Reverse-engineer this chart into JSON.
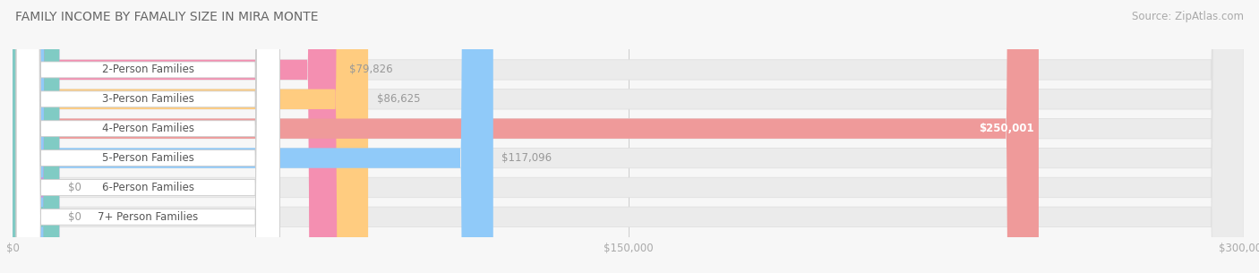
{
  "title": "FAMILY INCOME BY FAMALIY SIZE IN MIRA MONTE",
  "source": "Source: ZipAtlas.com",
  "categories": [
    "2-Person Families",
    "3-Person Families",
    "4-Person Families",
    "5-Person Families",
    "6-Person Families",
    "7+ Person Families"
  ],
  "values": [
    79826,
    86625,
    250001,
    117096,
    0,
    0
  ],
  "bar_colors": [
    "#F48FB1",
    "#FFCC80",
    "#EF9A9A",
    "#90CAF9",
    "#CE93D8",
    "#80CBC4"
  ],
  "value_labels": [
    "$79,826",
    "$86,625",
    "$250,001",
    "$117,096",
    "$0",
    "$0"
  ],
  "xlim": [
    0,
    300000
  ],
  "xtick_labels": [
    "$0",
    "$150,000",
    "$300,000"
  ],
  "background_color": "#f7f7f7",
  "track_color": "#ebebeb",
  "track_edge_color": "#e0e0e0",
  "pill_color": "#ffffff",
  "pill_edge_color": "#cccccc",
  "title_fontsize": 10,
  "source_fontsize": 8.5,
  "label_fontsize": 8.5,
  "value_fontsize": 8.5,
  "bar_height": 0.68,
  "bar_alpha": 1.0
}
